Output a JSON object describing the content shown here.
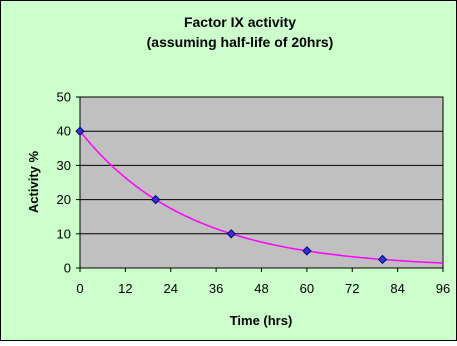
{
  "chart_data": {
    "type": "scatter",
    "title_lines": [
      "Factor IX activity",
      "(assuming half-life of 20hrs)"
    ],
    "xlabel": "Time (hrs)",
    "ylabel": "Activity %",
    "xlim": [
      0,
      96
    ],
    "ylim": [
      0,
      50
    ],
    "x_ticks": [
      0,
      12,
      24,
      36,
      48,
      60,
      72,
      84,
      96
    ],
    "y_ticks": [
      0,
      10,
      20,
      30,
      40,
      50
    ],
    "grid": "horizontal",
    "legend": "none",
    "series": [
      {
        "kind": "points",
        "x": [
          0,
          20,
          40,
          60,
          80
        ],
        "y": [
          40,
          20,
          10,
          5,
          2.5
        ],
        "color": "#000080",
        "fill": "#3333cc",
        "marker": "diamond"
      },
      {
        "kind": "curve",
        "function": "exponential-decay",
        "initial": 40,
        "half_life": 20,
        "x_range": [
          0,
          96
        ],
        "color": "#ff00ff"
      }
    ],
    "colors": {
      "chart_background": "#ccffcc",
      "plot_background": "#c0c0c0",
      "gridline": "#000000",
      "border": "#000000"
    }
  }
}
